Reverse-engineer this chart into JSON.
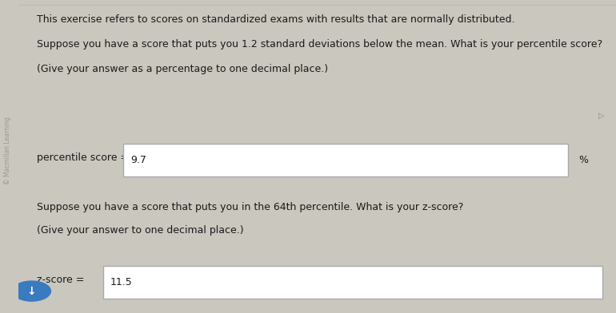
{
  "bg_color": "#cac7be",
  "content_bg": "#e8e5de",
  "text_color": "#1a1a1a",
  "line1": "This exercise refers to scores on standardized exams with results that are normally distributed.",
  "line2": "Suppose you have a score that puts you 1.2 standard deviations below the mean. What is your percentile score?",
  "line3": "(Give your answer as a percentage to one decimal place.)",
  "label1": "percentile score =",
  "answer1": "9.7",
  "unit1": "%",
  "line4": "Suppose you have a score that puts you in the 64th percentile. What is your z-score?",
  "line5": "(Give your answer to one decimal place.)",
  "label2": "z-score =",
  "answer2": "11.5",
  "sidebar_text": "© Macmillan Learning",
  "box_bg": "#ffffff",
  "box_border": "#aaaaaa",
  "font_size_main": 9.0,
  "font_size_label": 9.0,
  "font_size_answer": 9.0,
  "font_size_sidebar": 5.5,
  "sidebar_color": "#999999"
}
